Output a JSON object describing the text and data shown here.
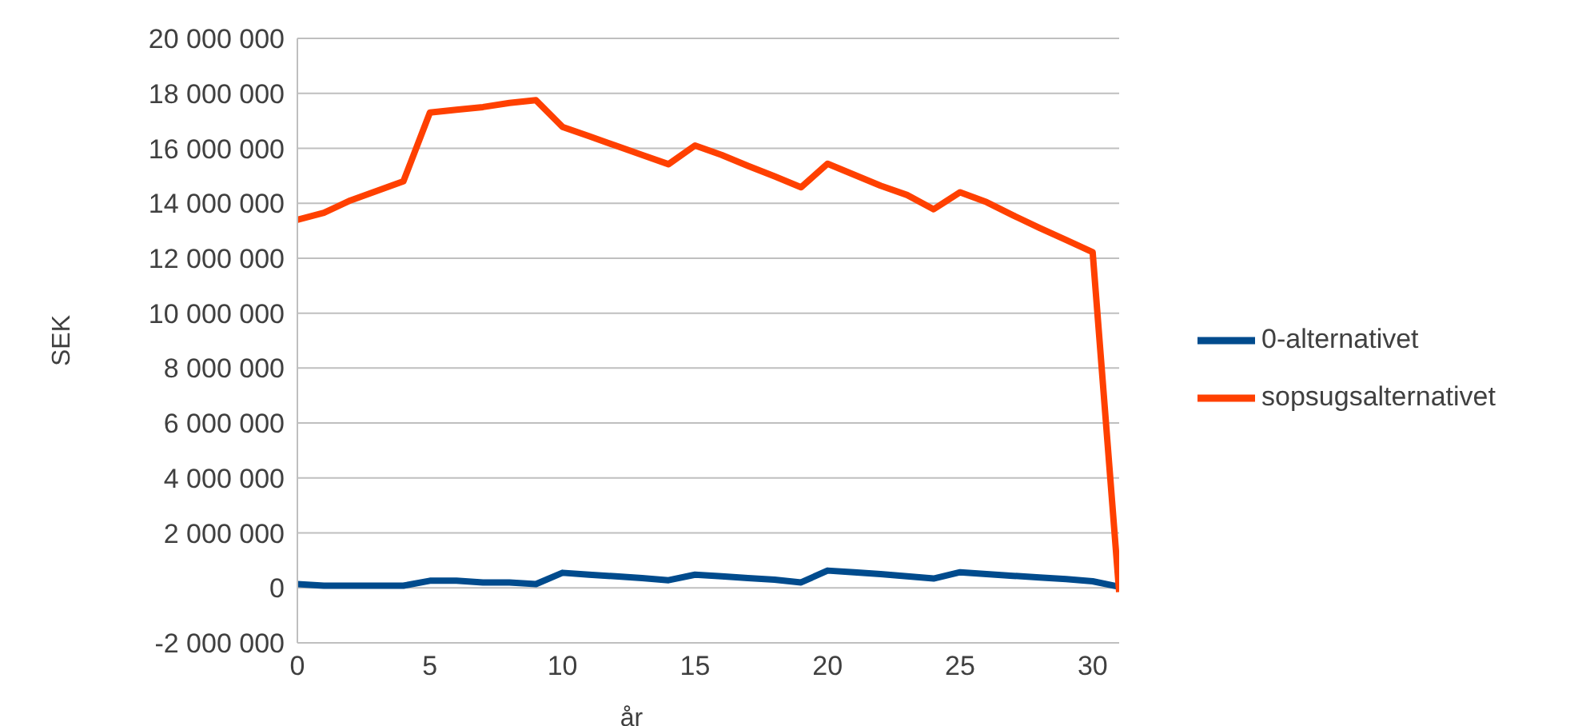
{
  "chart_data": {
    "type": "line",
    "xlabel": "år",
    "ylabel": "SEK",
    "x": [
      0,
      1,
      2,
      3,
      4,
      5,
      6,
      7,
      8,
      9,
      10,
      11,
      12,
      13,
      14,
      15,
      16,
      17,
      18,
      19,
      20,
      21,
      22,
      23,
      24,
      25,
      26,
      27,
      28,
      29,
      30,
      31
    ],
    "series": [
      {
        "name": "0-alternativet",
        "color": "#004b8d",
        "values": [
          140000,
          80000,
          80000,
          80000,
          80000,
          260000,
          260000,
          200000,
          200000,
          140000,
          550000,
          480000,
          420000,
          360000,
          280000,
          480000,
          420000,
          360000,
          300000,
          200000,
          630000,
          570000,
          500000,
          420000,
          340000,
          570000,
          500000,
          440000,
          380000,
          320000,
          240000,
          40000
        ]
      },
      {
        "name": "sopsugsalternativet",
        "color": "#ff4000",
        "values": [
          13400000,
          13650000,
          14100000,
          14450000,
          14800000,
          17300000,
          17400000,
          17500000,
          17650000,
          17750000,
          16780000,
          16440000,
          16100000,
          15760000,
          15420000,
          16100000,
          15760000,
          15360000,
          14980000,
          14580000,
          15440000,
          15040000,
          14640000,
          14300000,
          13780000,
          14400000,
          14040000,
          13560000,
          13100000,
          12660000,
          12220000,
          -150000
        ]
      }
    ],
    "xlim": [
      0,
      31
    ],
    "xticks": [
      0,
      5,
      10,
      15,
      20,
      25,
      30
    ],
    "ylim": [
      -2000000,
      20000000
    ],
    "yticks": [
      -2000000,
      0,
      2000000,
      4000000,
      6000000,
      8000000,
      10000000,
      12000000,
      14000000,
      16000000,
      18000000,
      20000000
    ],
    "grid": "y",
    "legend": "right",
    "marker": "none",
    "line_style": "solid"
  }
}
